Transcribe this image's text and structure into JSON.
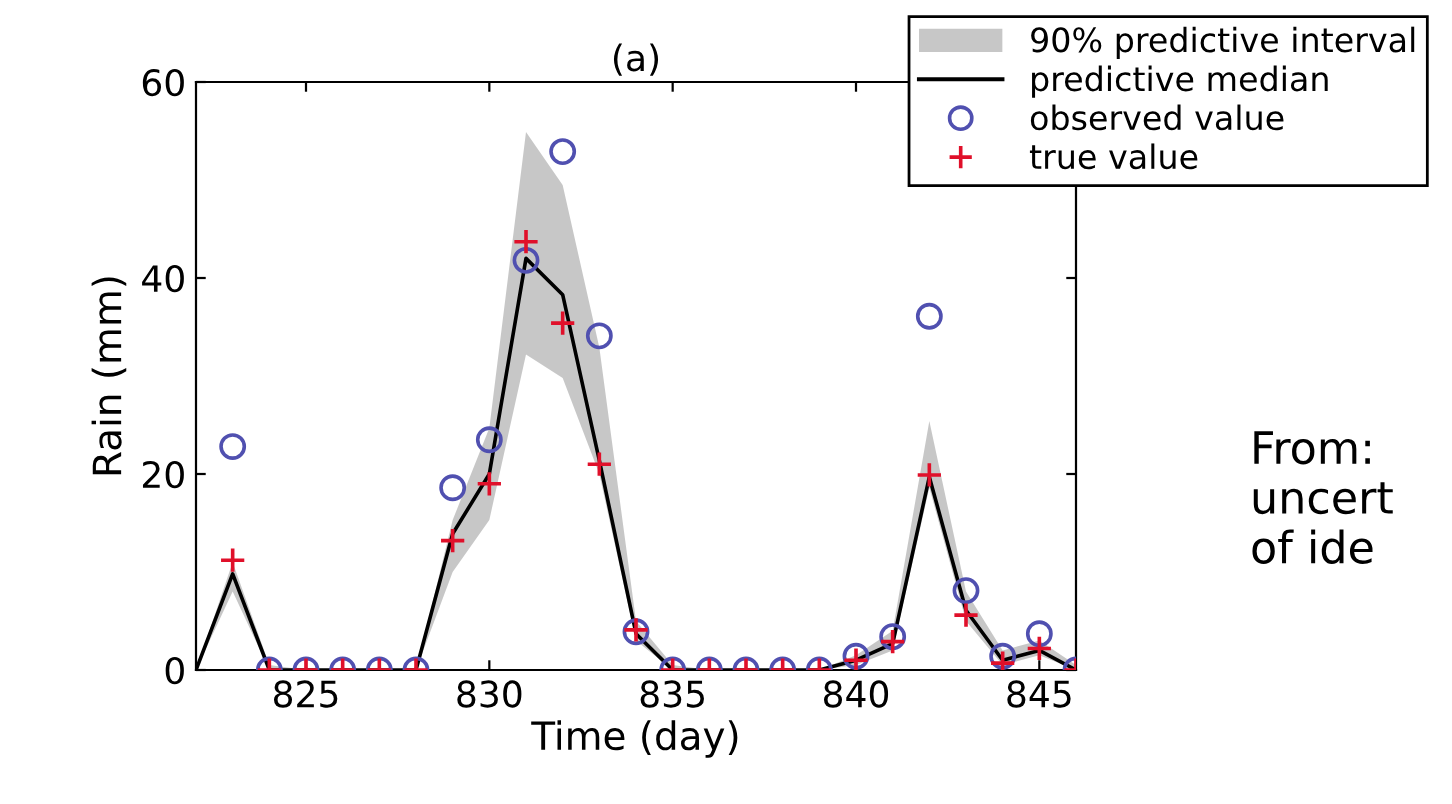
{
  "chart_data": {
    "type": "line",
    "title": "(a)",
    "xlabel": "Time (day)",
    "ylabel": "Rain (mm)",
    "x": [
      822,
      823,
      824,
      825,
      826,
      827,
      828,
      829,
      830,
      831,
      832,
      833,
      834,
      835,
      836,
      837,
      838,
      839,
      840,
      841,
      842,
      843,
      844,
      845,
      846
    ],
    "series": [
      {
        "name": "predictive median",
        "color": "#000000",
        "marker": "none",
        "line_style": "solid",
        "values": [
          0,
          9.8,
          0,
          0,
          0,
          0,
          0,
          13.9,
          20,
          42,
          38.3,
          21.4,
          3.7,
          0,
          0,
          0,
          0,
          0,
          1,
          2.7,
          19.7,
          6.1,
          1,
          2,
          0
        ],
        "lower": [
          0,
          8,
          0,
          0,
          0,
          0,
          0,
          10,
          15.3,
          32.2,
          29.8,
          20,
          3,
          0,
          0,
          0,
          0,
          0,
          0.5,
          2,
          18.6,
          5,
          0.5,
          1.5,
          0
        ],
        "upper": [
          0,
          11,
          0.5,
          0,
          0,
          0,
          0,
          15.3,
          24.7,
          54.9,
          49.5,
          32.9,
          5,
          0.5,
          0,
          0,
          0,
          0,
          1.5,
          4,
          25.4,
          8,
          2,
          3,
          0.5
        ]
      },
      {
        "name": "observed value",
        "type": "scatter",
        "color": "#5050b0",
        "marker": "circle",
        "values": [
          null,
          22.8,
          0,
          0,
          0,
          0,
          0,
          18.6,
          23.5,
          41.8,
          52.9,
          34.1,
          3.9,
          0,
          0,
          0,
          0,
          0,
          1.4,
          3.4,
          36.1,
          8.1,
          1.4,
          3.7,
          0
        ]
      },
      {
        "name": "true value",
        "type": "scatter",
        "color": "#e0102a",
        "marker": "cross",
        "values": [
          null,
          11.2,
          0,
          0,
          0,
          0,
          0,
          13.2,
          19,
          43.7,
          35.4,
          21,
          4.1,
          0,
          0,
          0,
          0,
          0,
          1,
          2.9,
          19.9,
          5.6,
          0.7,
          2.2,
          0
        ]
      }
    ],
    "xlim": [
      822,
      846
    ],
    "xticks": [
      825,
      830,
      835,
      840,
      845
    ],
    "ylim": [
      0,
      60
    ],
    "yticks": [
      0,
      20,
      40,
      60
    ],
    "grid": false,
    "legend": "top right",
    "annotations": [
      "90% predictive interval",
      "From:\nuncert\nof ide"
    ]
  }
}
